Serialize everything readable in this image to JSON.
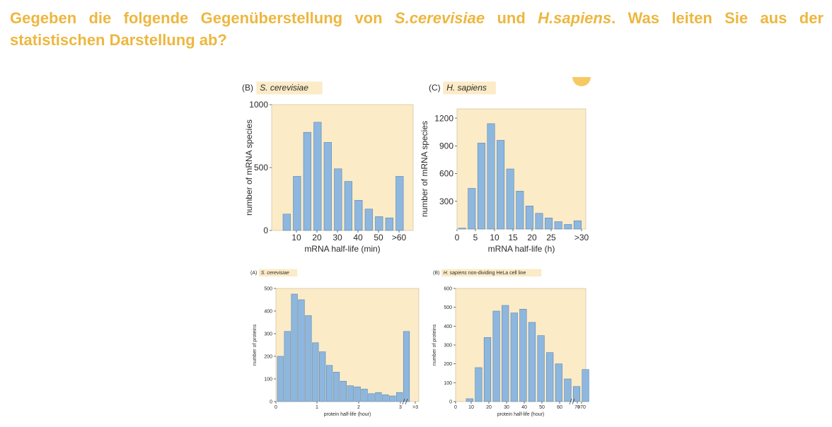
{
  "question": {
    "part1": "Gegeben die folgende Gegenüberstellung von ",
    "species1": "S.cerevisiae",
    "part2": " und ",
    "species2": "H.sapiens",
    "part3": ". Was leiten Sie aus der statistischen Darstellung ab?"
  },
  "colors": {
    "panel_bg": "#FBEBC7",
    "bar_fill": "#8DB7DF",
    "bar_stroke": "#5C86B0",
    "text": "#2b2b2b",
    "question": "#EDB740"
  },
  "chart_data": [
    {
      "type": "bar",
      "panel_label": "(B)",
      "title": "S. cerevisiae",
      "xlabel": "mRNA half-life (min)",
      "ylabel": "number of mRNA species",
      "ylim": [
        0,
        1000
      ],
      "y_ticks": [
        "0",
        "500",
        "1000"
      ],
      "x_ticks": [
        "10",
        "20",
        "30",
        "40",
        "50",
        ">60"
      ],
      "values": [
        130,
        430,
        780,
        860,
        700,
        490,
        390,
        240,
        170,
        110,
        100,
        430
      ]
    },
    {
      "type": "bar",
      "panel_label": "(C)",
      "title": "H. sapiens",
      "xlabel": "mRNA half-life (h)",
      "ylabel": "number of mRNA species",
      "ylim": [
        0,
        1300
      ],
      "y_ticks": [
        "300",
        "600",
        "900",
        "1200"
      ],
      "x_ticks": [
        "0",
        "5",
        "10",
        "15",
        "20",
        "25",
        ">30"
      ],
      "values": [
        10,
        440,
        930,
        1140,
        960,
        650,
        410,
        250,
        170,
        120,
        80,
        50,
        90
      ]
    },
    {
      "type": "bar",
      "panel_label": "(A)",
      "title": "S. cerevisiae",
      "xlabel": "protein half-life (hour)",
      "ylabel": "number of proteins",
      "ylim": [
        0,
        500
      ],
      "y_ticks": [
        "0",
        "100",
        "200",
        "300",
        "400",
        "500"
      ],
      "x_ticks": [
        "0",
        "1",
        "2",
        "3",
        ">3"
      ],
      "values": [
        200,
        310,
        475,
        450,
        380,
        260,
        220,
        160,
        130,
        90,
        70,
        65,
        55,
        35,
        40,
        30,
        25,
        40,
        310
      ]
    },
    {
      "type": "bar",
      "panel_label": "(B)",
      "title": "H. sapiens",
      "title_suffix": " non-dividing HeLa cell line",
      "xlabel": "protein half-life (hour)",
      "ylabel": "number of proteins",
      "ylim": [
        0,
        600
      ],
      "y_ticks": [
        "0",
        "100",
        "200",
        "300",
        "400",
        "500",
        "600"
      ],
      "x_ticks": [
        "0",
        "10",
        "20",
        "30",
        "40",
        "50",
        "60",
        "70",
        ">70"
      ],
      "values": [
        15,
        180,
        340,
        480,
        510,
        470,
        490,
        420,
        350,
        260,
        200,
        120,
        80,
        170
      ]
    }
  ]
}
